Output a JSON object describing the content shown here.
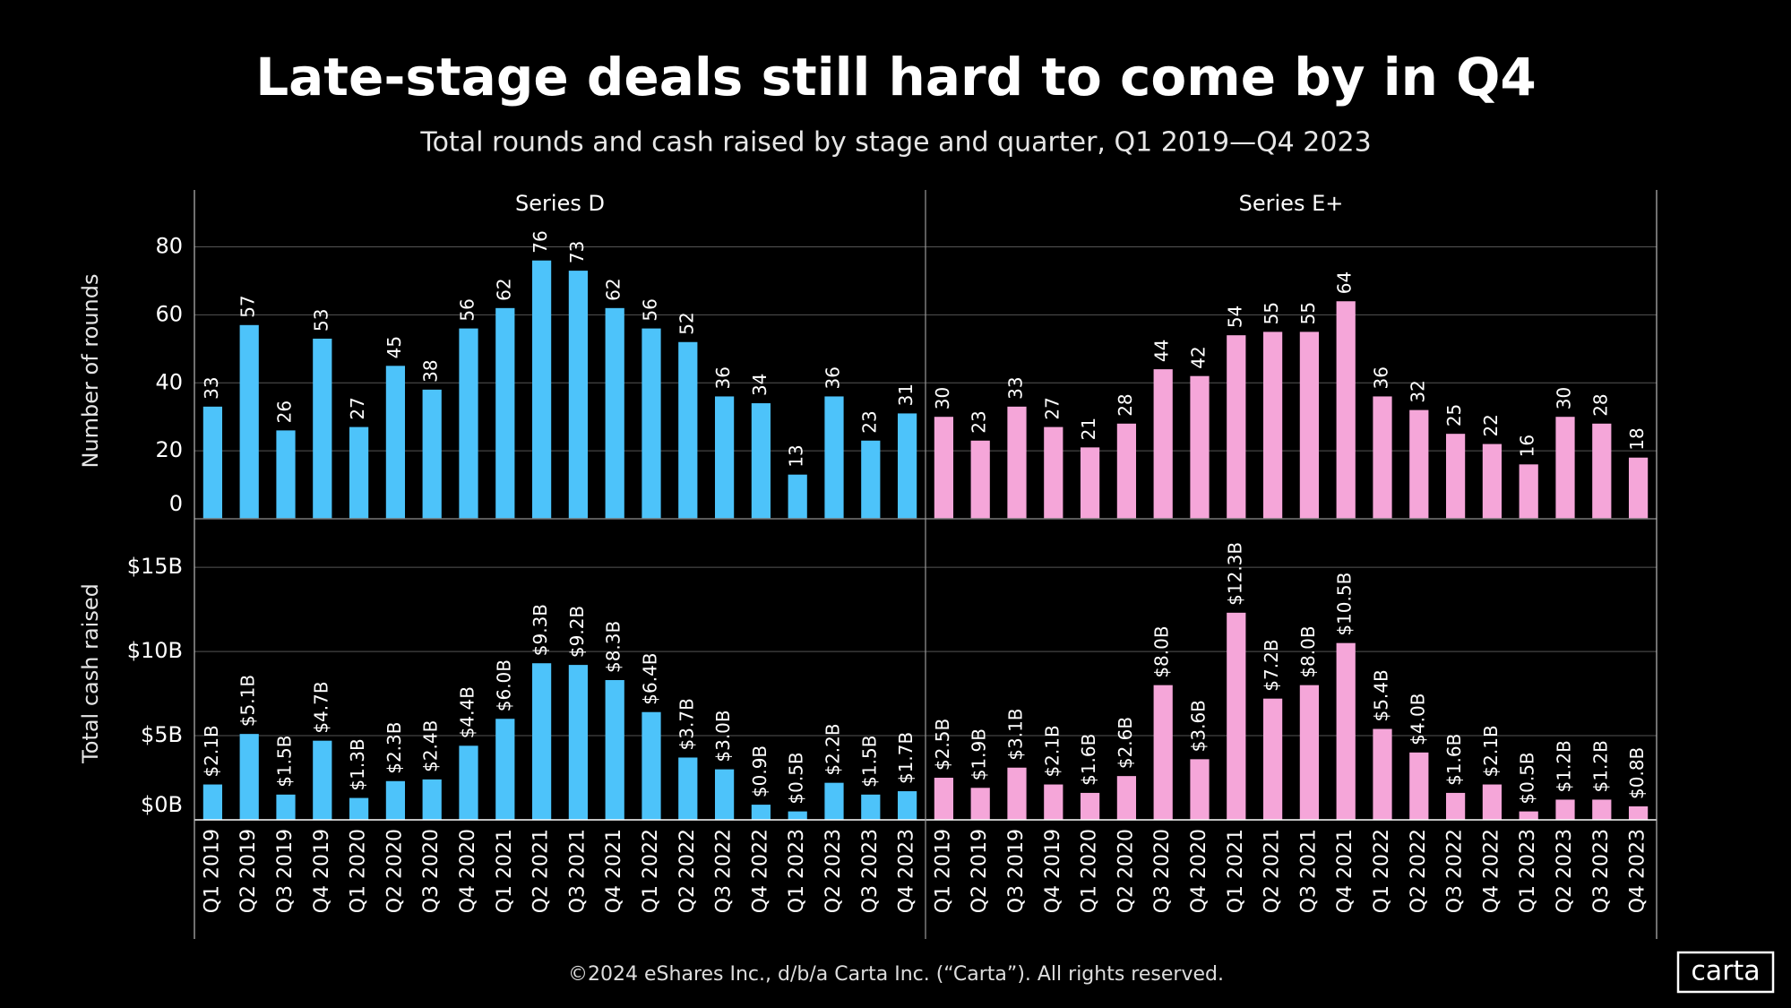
{
  "title": "Late-stage deals still hard to come by in Q4",
  "subtitle": "Total rounds and cash raised by stage and quarter, Q1 2019—Q4 2023",
  "footer": "©2024 eShares Inc., d/b/a Carta Inc. (“Carta”). All rights reserved.",
  "logo": "carta",
  "chart_data": {
    "type": "bar",
    "categories": [
      "Q1 2019",
      "Q2 2019",
      "Q3 2019",
      "Q4 2019",
      "Q1 2020",
      "Q2 2020",
      "Q3 2020",
      "Q4 2020",
      "Q1 2021",
      "Q2 2021",
      "Q3 2021",
      "Q4 2021",
      "Q1 2022",
      "Q2 2022",
      "Q3 2022",
      "Q4 2022",
      "Q1 2023",
      "Q2 2023",
      "Q3 2023",
      "Q4 2023"
    ],
    "facets": [
      {
        "name": "Series D",
        "color": "#4dc3fa"
      },
      {
        "name": "Series E+",
        "color": "#f5a6d9"
      }
    ],
    "grid": true,
    "rows": [
      {
        "ylabel": "Number of rounds",
        "ylim": [
          0,
          87
        ],
        "yticks": [
          0,
          20,
          40,
          60,
          80
        ],
        "series": [
          {
            "values": [
              33,
              57,
              26,
              53,
              27,
              45,
              38,
              56,
              62,
              76,
              73,
              62,
              56,
              52,
              36,
              34,
              13,
              36,
              23,
              31
            ]
          },
          {
            "values": [
              30,
              23,
              33,
              27,
              21,
              28,
              44,
              42,
              54,
              55,
              55,
              64,
              36,
              32,
              25,
              22,
              16,
              30,
              28,
              18
            ]
          }
        ]
      },
      {
        "ylabel": "Total cash raised",
        "ylim": [
          0,
          17.4
        ],
        "yticks": [
          {
            "value": 0,
            "label": "$0B"
          },
          {
            "value": 5,
            "label": "$5B"
          },
          {
            "value": 10,
            "label": "$10B"
          },
          {
            "value": 15,
            "label": "$15B"
          }
        ],
        "series": [
          {
            "values": [
              2.1,
              5.1,
              1.5,
              4.7,
              1.3,
              2.3,
              2.4,
              4.4,
              6.0,
              9.3,
              9.2,
              8.3,
              6.4,
              3.7,
              3.0,
              0.9,
              0.5,
              2.2,
              1.5,
              1.7
            ],
            "value_labels": [
              "$2.1B",
              "$5.1B",
              "$1.5B",
              "$4.7B",
              "$1.3B",
              "$2.3B",
              "$2.4B",
              "$4.4B",
              "$6.0B",
              "$9.3B",
              "$9.2B",
              "$8.3B",
              "$6.4B",
              "$3.7B",
              "$3.0B",
              "$0.9B",
              "$0.5B",
              "$2.2B",
              "$1.5B",
              "$1.7B"
            ]
          },
          {
            "values": [
              2.5,
              1.9,
              3.1,
              2.1,
              1.6,
              2.6,
              8.0,
              3.6,
              12.3,
              7.2,
              8.0,
              10.5,
              5.4,
              4.0,
              1.6,
              2.1,
              0.5,
              1.2,
              1.2,
              0.8
            ],
            "value_labels": [
              "$2.5B",
              "$1.9B",
              "$3.1B",
              "$2.1B",
              "$1.6B",
              "$2.6B",
              "$8.0B",
              "$3.6B",
              "$12.3B",
              "$7.2B",
              "$8.0B",
              "$10.5B",
              "$5.4B",
              "$4.0B",
              "$1.6B",
              "$2.1B",
              "$0.5B",
              "$1.2B",
              "$1.2B",
              "$0.8B"
            ]
          }
        ]
      }
    ]
  }
}
